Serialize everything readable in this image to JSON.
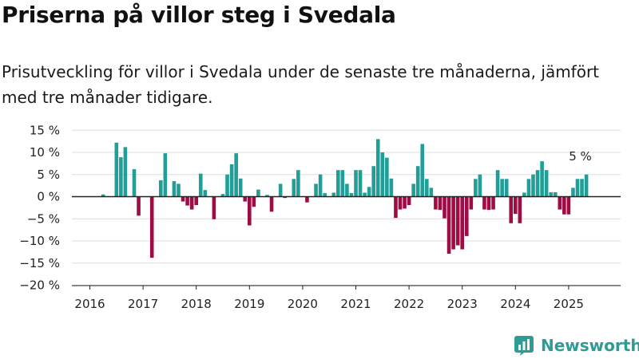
{
  "title": "Priserna på villor steg i Svedala",
  "subtitle": "Prisutveckling för villor i Svedala under de senaste tre månaderna, jämfört med tre månader tidigare.",
  "brand": {
    "name": "Newsworthy",
    "color": "#2e9c94"
  },
  "colors": {
    "positive": "#1f9f97",
    "negative": "#9e0c44"
  },
  "chart_data": {
    "type": "bar",
    "title": "Priserna på villor steg i Svedala",
    "xlabel": "",
    "ylabel": "",
    "x_tick_labels": [
      "2016",
      "2017",
      "2018",
      "2019",
      "2020",
      "2021",
      "2022",
      "2023",
      "2024",
      "2025"
    ],
    "y_tick_values": [
      15,
      10,
      5,
      0,
      -5,
      -10,
      -15,
      -20
    ],
    "y_tick_labels": [
      "15 %",
      "10 %",
      "5 %",
      "0 %",
      "−5 %",
      "−10 %",
      "−15 %",
      "−20 %"
    ],
    "ylim": [
      -20,
      15
    ],
    "unit": "%",
    "grid": "horizontal",
    "start_period": "2016-01",
    "end_period": "2025-04",
    "values": [
      0,
      0,
      0,
      0.5,
      0,
      0,
      12.2,
      8.9,
      11.2,
      0,
      6.2,
      -4.3,
      0,
      0,
      -13.8,
      0,
      3.7,
      9.8,
      0,
      3.5,
      2.9,
      -1.1,
      -2.0,
      -2.9,
      -1.9,
      5.2,
      1.5,
      0,
      -5.1,
      0,
      0.6,
      5.0,
      7.3,
      9.8,
      4.1,
      -1.1,
      -6.5,
      -2.3,
      1.6,
      0,
      0.4,
      -3.4,
      0,
      2.9,
      -0.3,
      0,
      4.0,
      6.0,
      0,
      -1.3,
      0,
      2.9,
      5.0,
      0.8,
      0,
      0.9,
      6.0,
      6.0,
      2.9,
      0.8,
      6.0,
      6.0,
      0.9,
      2.2,
      6.9,
      13.0,
      10.0,
      8.8,
      4.1,
      -4.8,
      -2.9,
      -2.7,
      -1.9,
      2.9,
      6.9,
      11.9,
      4.0,
      2.0,
      -2.9,
      -3.0,
      -4.9,
      -12.9,
      -11.9,
      -11.0,
      -11.9,
      -8.9,
      -2.9,
      4.0,
      5.0,
      -2.9,
      -3.0,
      -2.9,
      6.0,
      4.0,
      4.0,
      -6.0,
      -3.9,
      -6.0,
      0.9,
      4.0,
      5.0,
      6.0,
      8.0,
      6.0,
      1.0,
      1.0,
      -2.9,
      -4.0,
      -4.0,
      2.0,
      4.0,
      4.0,
      5.0
    ],
    "annotation": {
      "text": "5 %",
      "period": "2025-04",
      "value": 5
    }
  }
}
